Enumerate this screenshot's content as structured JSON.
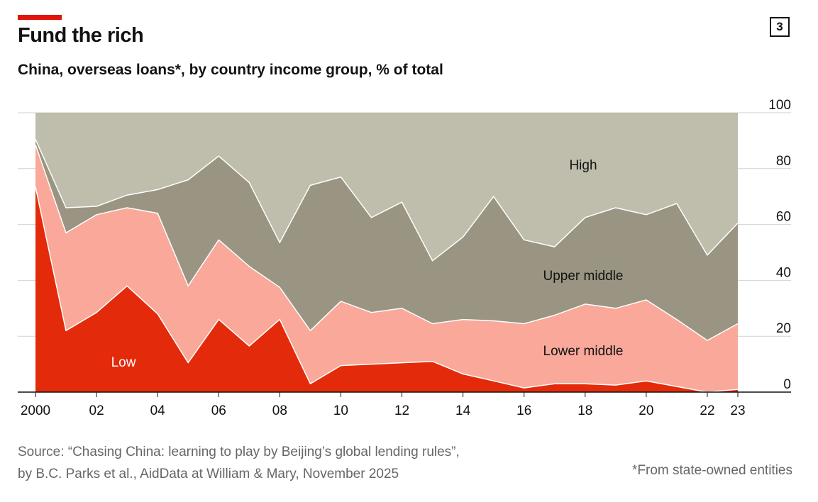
{
  "header": {
    "title": "Fund the rich",
    "subtitle": "China, overseas loans*, by country income group, % of total",
    "chart_number": "3"
  },
  "footer": {
    "source_line1": "Source: “Chasing China: learning to play by Beijing’s global lending rules”,",
    "source_line2": "by B.C. Parks et al., AidData at William & Mary, November 2025",
    "footnote": "*From state-owned entities"
  },
  "colors": {
    "low": "#e32b0b",
    "lower_middle": "#f9a89a",
    "upper_middle": "#999582",
    "high": "#bfbdab",
    "accent": "#e3120b"
  },
  "chart_data": {
    "type": "area",
    "stacked": true,
    "x": [
      2000,
      2001,
      2002,
      2003,
      2004,
      2005,
      2006,
      2007,
      2008,
      2009,
      2010,
      2011,
      2012,
      2013,
      2014,
      2015,
      2016,
      2017,
      2018,
      2019,
      2020,
      2021,
      2022,
      2023
    ],
    "x_tick_labels": [
      "2000",
      "02",
      "04",
      "06",
      "08",
      "10",
      "12",
      "14",
      "16",
      "18",
      "20",
      "22",
      "23"
    ],
    "x_tick_values": [
      2000,
      2002,
      2004,
      2006,
      2008,
      2010,
      2012,
      2014,
      2016,
      2018,
      2020,
      2022,
      2023
    ],
    "ylim": [
      0,
      100
    ],
    "y_ticks": [
      0,
      20,
      40,
      60,
      80,
      100
    ],
    "y_axis_side": "right",
    "grid": true,
    "series": [
      {
        "name": "Low",
        "key": "low",
        "values": [
          73.5,
          22,
          28.5,
          38,
          28,
          10.5,
          26,
          16.5,
          26,
          3,
          9.5,
          10,
          10.5,
          11,
          6.5,
          4,
          1.5,
          3,
          3,
          2.5,
          4,
          2,
          0,
          1
        ]
      },
      {
        "name": "Lower middle",
        "key": "lower_middle",
        "values": [
          15,
          35,
          35,
          28,
          36,
          27.5,
          28.5,
          28.5,
          11.5,
          19,
          23,
          18.5,
          19.5,
          13.5,
          19.5,
          21.5,
          23,
          24.5,
          28.5,
          27.5,
          29,
          24,
          18.5,
          23.5
        ]
      },
      {
        "name": "Upper middle",
        "key": "upper_middle",
        "values": [
          2,
          9,
          3,
          4.5,
          8.5,
          38,
          30,
          30,
          16,
          52,
          44.5,
          34,
          38,
          22.5,
          29.5,
          44.5,
          30,
          24.5,
          31,
          36,
          30.5,
          41.5,
          30.5,
          36
        ]
      },
      {
        "name": "High",
        "key": "high",
        "values": [
          9.5,
          34,
          33.5,
          29.5,
          27.5,
          24,
          15.5,
          25,
          46.5,
          26,
          23,
          37.5,
          32,
          53,
          44.5,
          30,
          45.5,
          48,
          37.5,
          34,
          36.5,
          32.5,
          51,
          39.5
        ]
      }
    ],
    "labels": [
      {
        "series": "High",
        "text": "High"
      },
      {
        "series": "Upper middle",
        "text": "Upper middle"
      },
      {
        "series": "Lower middle",
        "text": "Lower middle"
      },
      {
        "series": "Low",
        "text": "Low"
      }
    ]
  }
}
